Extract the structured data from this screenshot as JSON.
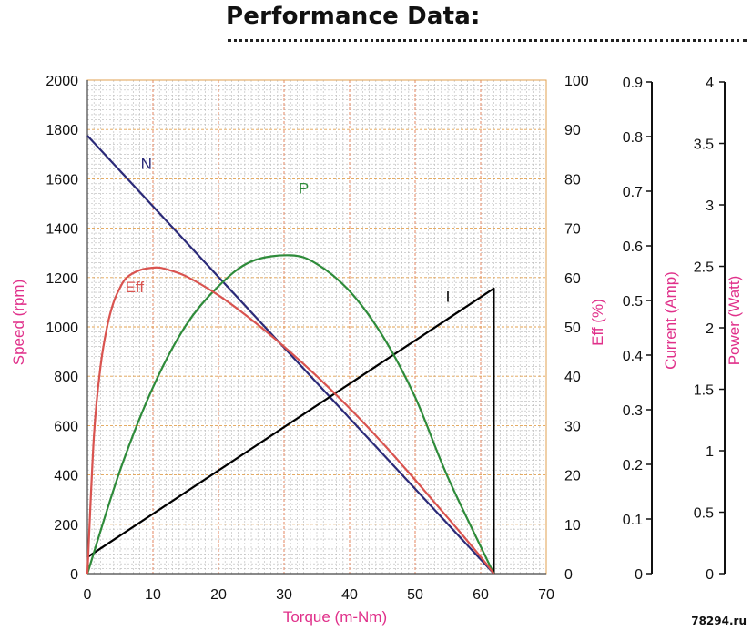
{
  "header": {
    "title": "Performance Data:"
  },
  "watermark": "78294.ru",
  "chart_data": {
    "type": "line",
    "title": "Performance Data:",
    "xlabel": "Torque (m-Nm)",
    "xlim": [
      0,
      70
    ],
    "x_ticks": [
      0,
      10,
      20,
      30,
      40,
      50,
      60,
      70
    ],
    "grid": true,
    "axes": {
      "speed": {
        "label": "Speed (rpm)",
        "range": [
          0,
          2000
        ],
        "ticks": [
          "0",
          "200",
          "400",
          "600",
          "800",
          "1000",
          "1200",
          "1400",
          "1600",
          "1800",
          "2000"
        ],
        "color": "#e0308a"
      },
      "eff": {
        "label": "Eff (%)",
        "range": [
          0,
          100
        ],
        "ticks": [
          "0",
          "10",
          "20",
          "30",
          "40",
          "50",
          "60",
          "70",
          "80",
          "90",
          "100"
        ],
        "color": "#e0308a"
      },
      "current": {
        "label": "Current (Amp)",
        "range": [
          0,
          0.9
        ],
        "ticks": [
          "0",
          "0.1",
          "0.2",
          "0.3",
          "0.4",
          "0.5",
          "0.6",
          "0.7",
          "0.8",
          "0.9"
        ],
        "color": "#e0308a"
      },
      "power": {
        "label": "Power (Watt)",
        "range": [
          0,
          4
        ],
        "ticks": [
          "0",
          "0.5",
          "1",
          "1.5",
          "2",
          "2.5",
          "3",
          "3.5",
          "4"
        ],
        "color": "#e0308a"
      }
    },
    "series": [
      {
        "name": "N",
        "axis": "speed",
        "color": "#2b2a78",
        "x": [
          0,
          62
        ],
        "y": [
          1775,
          0
        ]
      },
      {
        "name": "I",
        "axis": "current",
        "color": "#000000",
        "x": [
          0,
          62,
          62
        ],
        "y": [
          0.03,
          0.52,
          0
        ]
      },
      {
        "name": "P",
        "axis": "power",
        "color": "#2e8b3a",
        "x": [
          0,
          5,
          10,
          15,
          20,
          25,
          31,
          35,
          40,
          45,
          50,
          55,
          62
        ],
        "y": [
          0,
          0.84,
          1.51,
          2.01,
          2.33,
          2.53,
          2.58,
          2.51,
          2.29,
          1.93,
          1.43,
          0.78,
          0
        ]
      },
      {
        "name": "Eff",
        "axis": "eff",
        "color": "#d9534f",
        "x": [
          0,
          1,
          2,
          3,
          4,
          5,
          6,
          8,
          10,
          11,
          12,
          15,
          20,
          25,
          30,
          35,
          40,
          45,
          50,
          55,
          60,
          62
        ],
        "y": [
          0,
          28,
          42,
          50,
          55,
          58,
          60,
          61.5,
          62,
          62,
          61.7,
          60.3,
          56.4,
          51.5,
          46.0,
          40.0,
          33.5,
          26.5,
          19.0,
          11.3,
          3.4,
          0
        ]
      }
    ],
    "annotations": [
      {
        "text": "N",
        "x": 9,
        "y": 1640,
        "axis": "speed",
        "color": "#2b2a78"
      },
      {
        "text": "P",
        "x": 33,
        "y": 3.08,
        "axis": "power",
        "color": "#2e8b3a"
      },
      {
        "text": "Eff",
        "x": 7.2,
        "y": 57,
        "axis": "eff",
        "color": "#d9534f"
      },
      {
        "text": "I",
        "x": 55,
        "y": 0.496,
        "axis": "current",
        "color": "#000000"
      }
    ]
  }
}
